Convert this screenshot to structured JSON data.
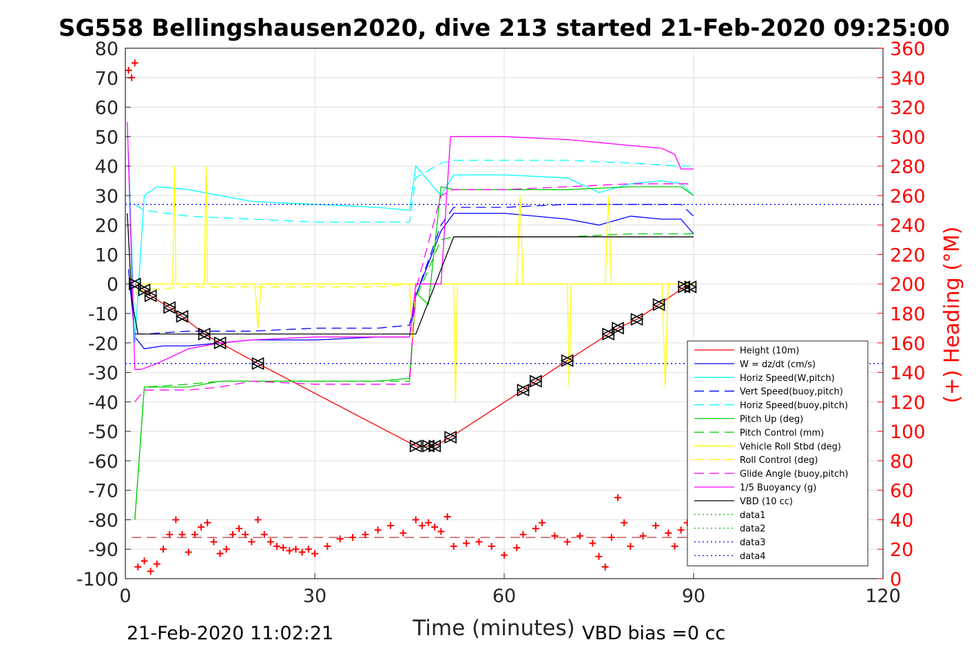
{
  "chart_data": {
    "type": "line",
    "title": "SG558 Bellingshausen2020, dive 213 started 21-Feb-2020 09:25:00",
    "xlabel": "Time (minutes)",
    "ylabel": "",
    "ylabel_right": "(+) Heading (°M)",
    "xlim": [
      0,
      120
    ],
    "ylim": [
      -100,
      80
    ],
    "ylim_right": [
      0,
      360
    ],
    "x_ticks": [
      0,
      30,
      60,
      90,
      120
    ],
    "y_ticks": [
      80,
      70,
      60,
      50,
      40,
      30,
      20,
      10,
      0,
      -10,
      -20,
      -30,
      -40,
      -50,
      -60,
      -70,
      -80,
      -90,
      -100
    ],
    "y_ticks_right": [
      360,
      340,
      320,
      300,
      280,
      260,
      240,
      220,
      200,
      180,
      160,
      140,
      120,
      100,
      80,
      60,
      40,
      20,
      0
    ],
    "grid": true,
    "legend_position": "bottom-right",
    "footer_left": "21-Feb-2020 11:02:21",
    "footer_right": "VBD bias =0 cc",
    "series": [
      {
        "name": "Height (10m)",
        "color": "#ff0000",
        "style": "solid",
        "x": [
          1.5,
          3,
          4,
          7,
          9,
          12.5,
          15,
          21,
          46,
          48,
          49,
          51.5,
          63,
          65,
          70,
          76.5,
          78,
          81,
          84.5,
          88.5,
          89.5
        ],
        "y": [
          0,
          -2,
          -4,
          -8,
          -11,
          -17,
          -20,
          -27,
          -55,
          -55,
          -55,
          -52,
          -36,
          -33,
          -26,
          -17,
          -15,
          -12,
          -7,
          -1,
          -1
        ]
      },
      {
        "name": "W = dz/dt (cm/s)",
        "color": "#0000ff",
        "style": "solid",
        "x": [
          0.5,
          1.5,
          3,
          6,
          10,
          15,
          20,
          30,
          40,
          45,
          46,
          50,
          52,
          60,
          70,
          75,
          80,
          85,
          88,
          90
        ],
        "y": [
          5,
          -18,
          -22,
          -21,
          -21,
          -20,
          -19,
          -19,
          -18,
          -18,
          -4,
          18,
          24,
          24,
          22,
          20,
          23,
          22,
          22,
          17
        ]
      },
      {
        "name": "Horiz Speed(W,pitch)",
        "color": "#00ffff",
        "style": "solid",
        "x": [
          0.5,
          1.5,
          3,
          5,
          10,
          15,
          20,
          30,
          40,
          45,
          46,
          50,
          52,
          60,
          70,
          75,
          80,
          85,
          88,
          90
        ],
        "y": [
          45,
          -20,
          30,
          33,
          32,
          30,
          28,
          27,
          26,
          25,
          40,
          30,
          37,
          37,
          36,
          31,
          34,
          35,
          34,
          30
        ]
      },
      {
        "name": "Vert Speed(buoy,pitch)",
        "color": "#0000ff",
        "style": "dashed",
        "x": [
          1.5,
          3,
          10,
          20,
          30,
          40,
          45,
          46,
          50,
          52,
          60,
          70,
          80,
          88,
          90
        ],
        "y": [
          -17,
          -17,
          -16,
          -16,
          -15,
          -15,
          -14,
          -4,
          20,
          26,
          26,
          27,
          27,
          27,
          23
        ]
      },
      {
        "name": "Horiz Speed(buoy,pitch)",
        "color": "#00ffff",
        "style": "dashed",
        "x": [
          1.5,
          3,
          10,
          20,
          30,
          40,
          45,
          46,
          50,
          52,
          60,
          70,
          80,
          88,
          90
        ],
        "y": [
          27,
          25,
          23,
          22,
          21,
          21,
          21,
          36,
          41,
          42,
          42,
          42,
          41,
          40,
          40
        ]
      },
      {
        "name": "Pitch Up (deg)",
        "color": "#00cc00",
        "style": "solid",
        "x": [
          1.5,
          3,
          10,
          15,
          20,
          30,
          40,
          45,
          46,
          48,
          50,
          52,
          60,
          70,
          80,
          85,
          88,
          90
        ],
        "y": [
          -80,
          -35,
          -35,
          -33,
          -33,
          -33,
          -33,
          -32,
          -3,
          -7,
          33,
          32,
          32,
          32,
          33,
          33,
          33,
          30
        ]
      },
      {
        "name": "Pitch Control (mm)",
        "color": "#00cc00",
        "style": "dashed",
        "x": [
          1.5,
          3,
          10,
          15,
          20,
          30,
          40,
          45,
          46,
          50,
          52,
          60,
          70,
          80,
          88,
          90
        ],
        "y": [
          -80,
          -35,
          -34,
          -33,
          -33,
          -33,
          -33,
          -33,
          -5,
          15,
          16,
          16,
          16,
          17,
          17,
          17
        ]
      },
      {
        "name": "Vehicle Roll Stbd (deg)",
        "color": "#ffff00",
        "style": "solid",
        "x": [
          1,
          2,
          3,
          7.5,
          7.8,
          8,
          12.5,
          12.8,
          13,
          20.5,
          21,
          21.5,
          30,
          45,
          45.5,
          46,
          52,
          52.3,
          52.6,
          62,
          62.5,
          63,
          70,
          70.3,
          70.6,
          76,
          76.5,
          77,
          85,
          85.5,
          86,
          89,
          90
        ],
        "y": [
          -2,
          0,
          0,
          0,
          40,
          0,
          0,
          40,
          0,
          0,
          -15,
          0,
          0,
          0,
          -20,
          0,
          0,
          -40,
          0,
          0,
          30,
          0,
          0,
          -35,
          0,
          0,
          30,
          0,
          0,
          -35,
          0,
          0,
          0
        ]
      },
      {
        "name": "Roll Control (deg)",
        "color": "#ffff00",
        "style": "dashed",
        "x": [
          1.5,
          3,
          10,
          20,
          30,
          40,
          46,
          50,
          60,
          70,
          80,
          90
        ],
        "y": [
          -3,
          -2,
          -1,
          -1,
          -1,
          -1,
          0,
          0,
          0,
          0,
          0,
          0
        ]
      },
      {
        "name": "Glide Angle (buoy,pitch)",
        "color": "#ff00ff",
        "style": "dashed",
        "x": [
          1.5,
          3,
          10,
          15,
          20,
          30,
          40,
          45,
          46,
          50,
          52,
          60,
          70,
          80,
          88,
          90
        ],
        "y": [
          -40,
          -36,
          -36,
          -35,
          -33,
          -34,
          -34,
          -34,
          -2,
          30,
          32,
          32,
          33,
          34,
          34,
          34
        ]
      },
      {
        "name": "1/5 Buoyancy (g)",
        "color": "#ff00ff",
        "style": "solid",
        "x": [
          0.3,
          1.5,
          2.5,
          5,
          10,
          15,
          20,
          30,
          40,
          45,
          46,
          48,
          50,
          51.5,
          55,
          60,
          70,
          80,
          85,
          87,
          88,
          90
        ],
        "y": [
          55,
          -29,
          -29,
          -27,
          -22,
          -20,
          -19,
          -18,
          -18,
          -18,
          0,
          0,
          0,
          50,
          50,
          50,
          49,
          47,
          46,
          44,
          39,
          39
        ]
      },
      {
        "name": "VBD (10 cc)",
        "color": "#000000",
        "style": "solid",
        "x": [
          0.3,
          1,
          2,
          10,
          20,
          30,
          40,
          45,
          46,
          52,
          60,
          70,
          80,
          90
        ],
        "y": [
          24,
          -5,
          -17,
          -17,
          -17,
          -17,
          -17,
          -17,
          -17,
          16,
          16,
          16,
          16,
          16
        ]
      },
      {
        "name": "data1",
        "color": "#00cc00",
        "style": "dotted",
        "x": [],
        "y": []
      },
      {
        "name": "data2",
        "color": "#00cc00",
        "style": "dotted",
        "x": [],
        "y": []
      },
      {
        "name": "data3",
        "color": "#0000ff",
        "style": "dotted",
        "x": [
          0,
          120
        ],
        "y": [
          27,
          27
        ]
      },
      {
        "name": "data4",
        "color": "#0000ff",
        "style": "dotted",
        "x": [
          0,
          120
        ],
        "y": [
          -27,
          -27
        ]
      }
    ],
    "heading_series": {
      "color": "#ff0000",
      "marker": "+",
      "axis": "right",
      "x": [
        0.5,
        1,
        1.5,
        2,
        3,
        4,
        5,
        6,
        7,
        8,
        9,
        10,
        11,
        12,
        13,
        14,
        15,
        16,
        17,
        18,
        19,
        20,
        21,
        22,
        23,
        24,
        25,
        26,
        27,
        28,
        29,
        30,
        32,
        34,
        36,
        38,
        40,
        42,
        44,
        46,
        47,
        48,
        49,
        50,
        51,
        52,
        54,
        56,
        58,
        60,
        62,
        63,
        65,
        66,
        68,
        70,
        72,
        74,
        75,
        76,
        77,
        78,
        79,
        80,
        82,
        84,
        86,
        87,
        88,
        89
      ],
      "y": [
        345,
        340,
        350,
        8,
        12,
        5,
        10,
        20,
        30,
        40,
        30,
        18,
        30,
        35,
        38,
        25,
        17,
        20,
        30,
        34,
        30,
        25,
        40,
        30,
        25,
        22,
        21,
        19,
        20,
        18,
        20,
        17,
        22,
        27,
        28,
        30,
        33,
        36,
        31,
        40,
        36,
        38,
        35,
        32,
        42,
        22,
        24,
        25,
        22,
        16,
        21,
        30,
        34,
        38,
        29,
        25,
        29,
        24,
        15,
        8,
        28,
        55,
        38,
        22,
        29,
        36,
        31,
        22,
        33,
        38
      ]
    },
    "heading_mean_right": 28,
    "triangle_markers": {
      "color": "#000000",
      "x": [
        1.5,
        3,
        4,
        7,
        9,
        12.5,
        15,
        21,
        46,
        48,
        49,
        51.5,
        63,
        65,
        70,
        76.5,
        78,
        81,
        84.5,
        88.5,
        89.5
      ],
      "y": [
        0,
        -2,
        -4,
        -8,
        -11,
        -17,
        -20,
        -27,
        -55,
        -55,
        -55,
        -52,
        -36,
        -33,
        -26,
        -17,
        -15,
        -12,
        -7,
        -1,
        -1
      ]
    }
  }
}
